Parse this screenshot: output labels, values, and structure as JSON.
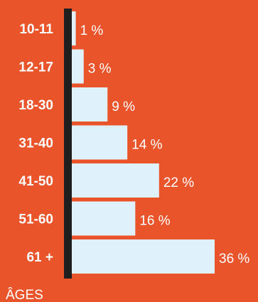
{
  "colors": {
    "background": "#e9542b",
    "bar": "#dff1fb",
    "axis": "#1f1f1f",
    "text": "#ffffff"
  },
  "chart_data": {
    "type": "bar",
    "orientation": "horizontal",
    "categories": [
      "10-11",
      "12-17",
      "18-30",
      "31-40",
      "41-50",
      "51-60",
      "61 +"
    ],
    "values": [
      1,
      3,
      9,
      14,
      22,
      16,
      36
    ],
    "value_labels": [
      "1 %",
      "3 %",
      "9 %",
      "14 %",
      "22 %",
      "16 %",
      "36 %"
    ],
    "unit": "%",
    "title": "",
    "xlabel": "",
    "ylabel": "ÂGES",
    "xlim": [
      0,
      36
    ],
    "grid": false,
    "legend": "none"
  }
}
